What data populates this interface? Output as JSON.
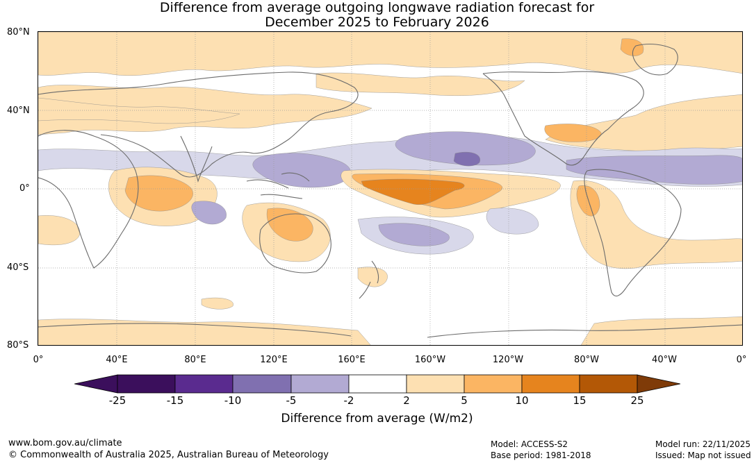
{
  "title": {
    "line1": "Difference from average outgoing longwave radiation forecast for",
    "line2": "December 2025 to February 2026"
  },
  "map": {
    "lat_labels": [
      "80°N",
      "40°N",
      "0°",
      "40°S",
      "80°S"
    ],
    "lon_labels": [
      "0°",
      "40°E",
      "80°E",
      "120°E",
      "160°E",
      "160°W",
      "120°W",
      "80°W",
      "40°W",
      "0°"
    ],
    "palette": {
      "p25": "#3b0f5c",
      "p15": "#5a2b8f",
      "p10": "#8070b0",
      "p5": "#b2aad3",
      "p2": "#d8d8ea",
      "neutral": "#ffffff",
      "o2": "#fde0b2",
      "o5": "#fbb563",
      "o10": "#e6841e",
      "o15": "#b35806",
      "o25": "#7f3b08",
      "coast": "#6b6b6b"
    }
  },
  "colorbar": {
    "ticks": [
      "-25",
      "-15",
      "-10",
      "-5",
      "-2",
      "2",
      "5",
      "10",
      "15",
      "25"
    ],
    "label": "Difference from average (W/m2)"
  },
  "footer": {
    "website": "www.bom.gov.au/climate",
    "copyright": "© Commonwealth of Australia 2025, Australian Bureau of Meteorology",
    "model": "Model: ACCESS-S2",
    "base_period": "Base period: 1981-2018",
    "model_run": "Model run: 22/11/2025",
    "issued": "Issued: Map not issued"
  }
}
